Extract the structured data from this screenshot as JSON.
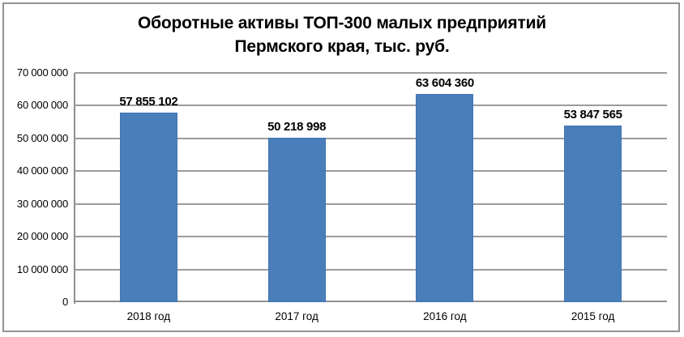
{
  "title": {
    "line1": "Оборотные активы ТОП-300 малых предприятий",
    "line2": "Пермского края, тыс. руб."
  },
  "chart_data": {
    "type": "bar",
    "title": "Оборотные активы ТОП-300 малых предприятий Пермского края, тыс. руб.",
    "categories": [
      "2018 год",
      "2017 год",
      "2016 год",
      "2015 год"
    ],
    "values": [
      57855102,
      50218998,
      63604360,
      53847565
    ],
    "value_labels": [
      "57 855 102",
      "50 218 998",
      "63 604 360",
      "53 847 565"
    ],
    "xlabel": "",
    "ylabel": "",
    "ylim": [
      0,
      70000000
    ],
    "ytick_step": 10000000,
    "yticks": [
      "70 000 000",
      "60 000 000",
      "50 000 000",
      "40 000 000",
      "30 000 000",
      "20 000 000",
      "10 000 000",
      "0"
    ],
    "grid": true,
    "legend": false
  },
  "colors": {
    "bar_fill": "#4a7ebb",
    "bar_border": "#4074b2",
    "gridline": "#9c9c9c",
    "axis": "#8f8f8f",
    "frame_border": "#929292",
    "text": "#000000",
    "background": "#ffffff"
  }
}
